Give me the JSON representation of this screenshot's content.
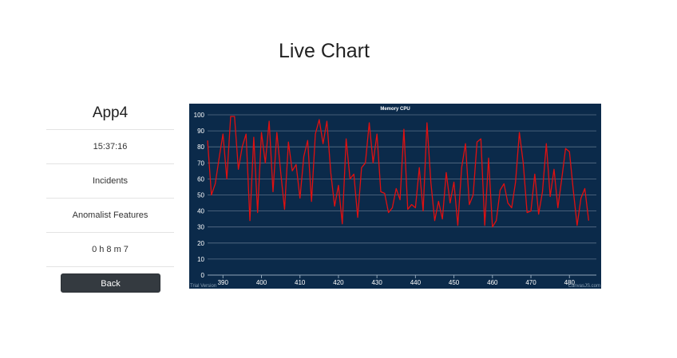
{
  "page": {
    "title": "Live Chart"
  },
  "panel": {
    "app_name": "App4",
    "time": "15:37:16",
    "incidents_label": "Incidents",
    "features_label": "Anomalist Features",
    "duration": "0 h 8 m 7",
    "back_label": "Back"
  },
  "colors": {
    "chart_background": "#0b2a4a",
    "series_line": "#e01010",
    "grid": "#5a7088",
    "back_button": "#343a40"
  },
  "chart_data": {
    "type": "line",
    "title": "Memory CPU",
    "xlabel": "",
    "ylabel": "",
    "xlim": [
      386,
      487
    ],
    "ylim": [
      0,
      100
    ],
    "x_ticks": [
      390,
      400,
      410,
      420,
      430,
      440,
      450,
      460,
      470,
      480
    ],
    "y_ticks": [
      0,
      10,
      20,
      30,
      40,
      50,
      60,
      70,
      80,
      90,
      100
    ],
    "grid": true,
    "watermark_left": "Trial Version",
    "watermark_right": "CanvasJS.com",
    "series": [
      {
        "x_start": 386,
        "values": [
          84,
          50,
          57,
          73,
          88,
          60,
          99,
          99,
          66,
          80,
          88,
          34,
          86,
          39,
          89,
          70,
          96,
          52,
          89,
          64,
          41,
          83,
          65,
          69,
          48,
          74,
          84,
          46,
          88,
          97,
          82,
          96,
          64,
          43,
          56,
          32,
          85,
          60,
          63,
          36,
          67,
          70,
          95,
          70,
          88,
          52,
          51,
          39,
          42,
          54,
          47,
          91,
          41,
          44,
          42,
          67,
          40,
          95,
          58,
          34,
          46,
          35,
          64,
          45,
          58,
          31,
          67,
          82,
          44,
          50,
          83,
          85,
          31,
          73,
          30,
          34,
          53,
          57,
          45,
          42,
          58,
          89,
          70,
          39,
          40,
          63,
          38,
          52,
          82,
          49,
          66,
          42,
          60,
          79,
          77,
          53,
          31,
          48,
          54,
          34
        ]
      }
    ]
  }
}
